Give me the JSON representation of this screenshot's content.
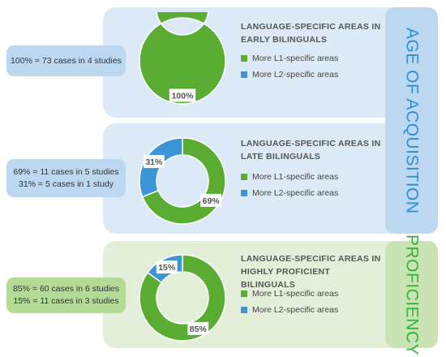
{
  "colors": {
    "l1": "#5aac32",
    "l2": "#3b95d6",
    "label_bg": "#ffffff",
    "label_text": "#555555"
  },
  "side_labels": {
    "age": "AGE OF ACQUISITION",
    "proficiency": "PROFICIENCY"
  },
  "chart_data": [
    {
      "type": "pie",
      "title": "LANGUAGE-SPECIFIC AREAS IN EARLY BILINGUALS",
      "title_lines": [
        "LANGUAGE-SPECIFIC AREAS IN",
        "EARLY BILINGUALS"
      ],
      "categories": [
        "More L1-specific areas",
        "More L2-specific areas"
      ],
      "values": [
        100,
        0
      ],
      "data_labels": [
        "100%",
        ""
      ],
      "notes": [
        "100% = 73 cases in 4 studies"
      ]
    },
    {
      "type": "pie",
      "title": "LANGUAGE-SPECIFIC AREAS IN LATE BILINGUALS",
      "title_lines": [
        "LANGUAGE-SPECIFIC AREAS IN",
        "LATE BILINGUALS"
      ],
      "categories": [
        "More L1-specific areas",
        "More L2-specific areas"
      ],
      "values": [
        69,
        31
      ],
      "data_labels": [
        "69%",
        "31%"
      ],
      "notes": [
        "69% = 11 cases in 5 studies",
        "31% = 5 cases in 1 study"
      ]
    },
    {
      "type": "pie",
      "title": "LANGUAGE-SPECIFIC AREAS IN HIGHLY PROFICIENT BILINGUALS",
      "title_lines": [
        "LANGUAGE-SPECIFIC AREAS IN",
        "HIGHLY PROFICIENT BILINGUALS"
      ],
      "categories": [
        "More L1-specific areas",
        "More L2-specific areas"
      ],
      "values": [
        85,
        15
      ],
      "data_labels": [
        "85%",
        "15%"
      ],
      "notes": [
        "85% = 60 cases in 6 studies",
        "15% = 11 cases in 3 studies"
      ]
    }
  ]
}
